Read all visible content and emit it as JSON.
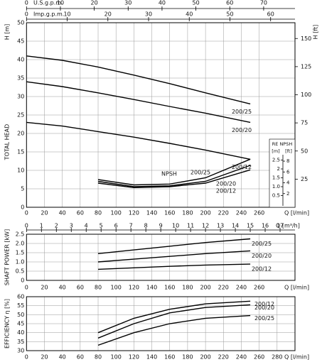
{
  "chart_data": [
    {
      "type": "line",
      "ylabel": "TOTAL HEAD",
      "yunit": "H [m]",
      "y2label": "H [ft]",
      "xlabel": "Q [l/min]",
      "xlim": [
        0,
        300
      ],
      "xticks": [
        0,
        20,
        40,
        60,
        80,
        100,
        120,
        140,
        160,
        180,
        200,
        220,
        240,
        260
      ],
      "ylim": [
        0,
        50
      ],
      "yticks": [
        0,
        5,
        10,
        15,
        20,
        25,
        30,
        35,
        40,
        45,
        50
      ],
      "y2lim": [
        0,
        164.04
      ],
      "y2ticks": [
        25,
        50,
        75,
        100,
        125,
        150
      ],
      "grid": true,
      "usgpm": {
        "label": "U.S.g.p.m.",
        "lim": [
          0,
          79.25
        ],
        "ticks": [
          0,
          10,
          20,
          30,
          40,
          50,
          60,
          70
        ]
      },
      "impgpm": {
        "label": "Imp.g.p.m.",
        "lim": [
          0,
          65.99
        ],
        "ticks": [
          0,
          10,
          20,
          30,
          40,
          50,
          60
        ]
      },
      "x": [
        0,
        40,
        80,
        120,
        160,
        200,
        250
      ],
      "series": [
        {
          "name": "200/25",
          "color": "#000000",
          "values": [
            41,
            39.8,
            38,
            35.8,
            33.5,
            31,
            28
          ]
        },
        {
          "name": "200/20",
          "color": "#000000",
          "values": [
            34,
            32.7,
            31,
            29.2,
            27.3,
            25.5,
            23
          ]
        },
        {
          "name": "200/12",
          "color": "#000000",
          "values": [
            23,
            22,
            20.5,
            19,
            17.3,
            15.5,
            13
          ]
        }
      ],
      "npsh": {
        "label": "NPSH",
        "header": "RE  NPSH",
        "unit_m": "[m]",
        "unit_ft": "[ft]",
        "ylim": [
          0,
          3
        ],
        "yticks": [
          0.5,
          {
            "value": 1,
            "label": "1.0"
          },
          1.5,
          2,
          2.5
        ],
        "ftlim": [
          0,
          9.84
        ],
        "ftticks": [
          2,
          4,
          6,
          8
        ],
        "series": [
          {
            "name": "200/25",
            "color": "#000000",
            "values": [
              null,
              null,
              1.4,
              1.1,
              1.15,
              1.5,
              2.55
            ]
          },
          {
            "name": "200/20",
            "color": "#000000",
            "values": [
              null,
              null,
              1.3,
              1.0,
              1.05,
              1.3,
              2.2
            ]
          },
          {
            "name": "200/12",
            "color": "#000000",
            "values": [
              null,
              null,
              1.2,
              0.95,
              1.0,
              1.2,
              1.95
            ]
          }
        ]
      }
    },
    {
      "type": "line",
      "ylabel": "SHAFT POWER [kW]",
      "xlabel": "Q [l/min]",
      "xlim": [
        0,
        300
      ],
      "xticks": [
        0,
        20,
        40,
        60,
        80,
        100,
        120,
        140,
        160,
        180,
        200,
        220,
        240,
        260
      ],
      "ylim": [
        0,
        2.5
      ],
      "yticks": [
        0,
        0.5,
        {
          "value": 1,
          "label": "1.0"
        },
        1.5,
        {
          "value": 2,
          "label": "2.0"
        },
        2.5
      ],
      "grid": true,
      "m3h": {
        "label": "Q [m³/h]",
        "lim": [
          0,
          18
        ],
        "ticks": [
          0,
          1,
          2,
          3,
          4,
          5,
          6,
          7,
          8,
          9,
          10,
          11,
          12,
          13,
          14,
          15,
          16,
          17
        ]
      },
      "x": [
        80,
        120,
        160,
        200,
        250
      ],
      "series": [
        {
          "name": "200/25",
          "color": "#000000",
          "values": [
            1.45,
            1.65,
            1.85,
            2.05,
            2.25
          ]
        },
        {
          "name": "200/20",
          "color": "#000000",
          "values": [
            1.0,
            1.15,
            1.3,
            1.45,
            1.6
          ]
        },
        {
          "name": "200/12",
          "color": "#000000",
          "values": [
            0.6,
            0.68,
            0.76,
            0.83,
            0.88
          ]
        }
      ]
    },
    {
      "type": "line",
      "ylabel": "EFFICIENCY  η  [%]",
      "xlabel": "Q [l/min]",
      "xlim": [
        0,
        300
      ],
      "xticks": [
        0,
        20,
        40,
        60,
        80,
        100,
        120,
        140,
        160,
        180,
        200,
        220,
        240,
        260,
        280
      ],
      "ylim": [
        30,
        60
      ],
      "yticks": [
        30,
        35,
        40,
        45,
        50,
        55,
        60
      ],
      "grid": true,
      "x": [
        80,
        120,
        160,
        200,
        250
      ],
      "series": [
        {
          "name": "200/12",
          "color": "#000000",
          "values": [
            40,
            48,
            53,
            56,
            57.5
          ]
        },
        {
          "name": "200/20",
          "color": "#000000",
          "values": [
            37,
            45,
            51,
            54,
            55.5
          ]
        },
        {
          "name": "200/25",
          "color": "#000000",
          "values": [
            33,
            40,
            45,
            48,
            49.5
          ]
        }
      ]
    }
  ]
}
